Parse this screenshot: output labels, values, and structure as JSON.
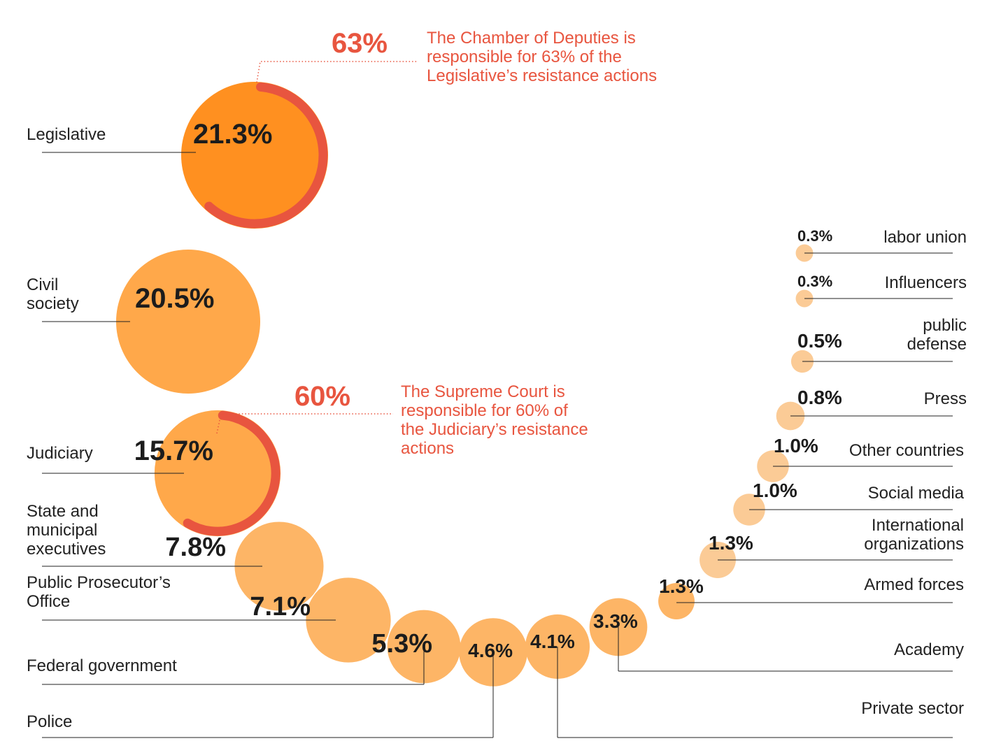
{
  "colors": {
    "primary": "#FF9020",
    "secondary": "#FFA84A",
    "minor": "#FDB566",
    "tiny": "#FBCB96",
    "highlight": "#E8553F",
    "line": "#222222"
  },
  "chart_data": {
    "type": "bubble",
    "unit": "%",
    "categories": [
      {
        "label": "Legislative",
        "value": 21.3,
        "value_label": "21.3%"
      },
      {
        "label": "Civil society",
        "value": 20.5,
        "value_label": "20.5%"
      },
      {
        "label": "Judiciary",
        "value": 15.7,
        "value_label": "15.7%"
      },
      {
        "label": "State and municipal executives",
        "value": 7.8,
        "value_label": "7.8%"
      },
      {
        "label": "Public Prosecutor’s Office",
        "value": 7.1,
        "value_label": "7.1%"
      },
      {
        "label": "Federal government",
        "value": 5.3,
        "value_label": "5.3%"
      },
      {
        "label": "Police",
        "value": 4.6,
        "value_label": "4.6%"
      },
      {
        "label": "Private sector",
        "value": 4.1,
        "value_label": "4.1%"
      },
      {
        "label": "Academy",
        "value": 3.3,
        "value_label": "3.3%"
      },
      {
        "label": "Armed forces",
        "value": 1.3,
        "value_label": "1.3%"
      },
      {
        "label": "International organizations",
        "value": 1.3,
        "value_label": "1.3%"
      },
      {
        "label": "Social media",
        "value": 1.0,
        "value_label": "1.0%"
      },
      {
        "label": "Other countries",
        "value": 1.0,
        "value_label": "1.0%"
      },
      {
        "label": "Press",
        "value": 0.8,
        "value_label": "0.8%"
      },
      {
        "label": "public defense",
        "value": 0.5,
        "value_label": "0.5%"
      },
      {
        "label": "Influencers",
        "value": 0.3,
        "value_label": "0.3%"
      },
      {
        "label": "labor union",
        "value": 0.3,
        "value_label": "0.3%"
      }
    ],
    "annotations": [
      {
        "category": "Legislative",
        "share": 63,
        "share_label": "63%",
        "text": "The Chamber of Deputies is responsible for 63% of the Legislative’s resistance actions"
      },
      {
        "category": "Judiciary",
        "share": 60,
        "share_label": "60%",
        "text": "The Supreme Court is responsible for 60% of the Judiciary’s resistance actions"
      }
    ]
  }
}
